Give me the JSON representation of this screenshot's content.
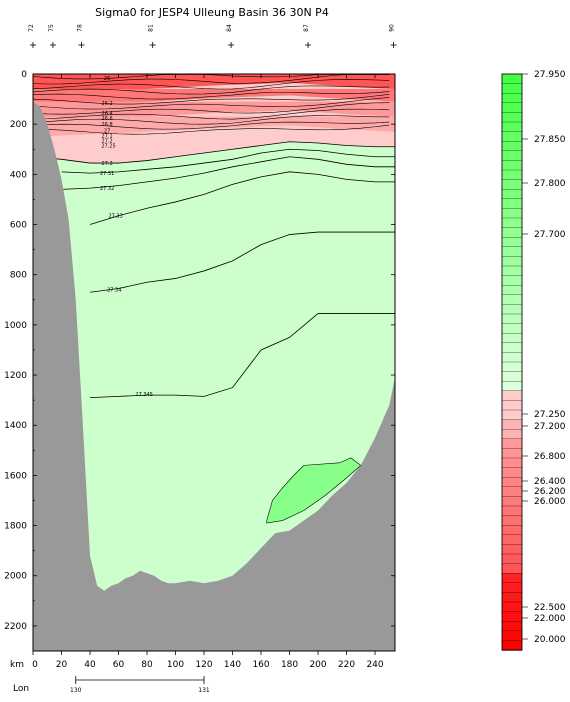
{
  "chart_data": {
    "type": "contour",
    "title": "Sigma0 for JESP4 Ulleung Basin 36 30N P4",
    "x_unit_label": "km",
    "x_ticks": [
      0,
      20,
      40,
      60,
      80,
      100,
      120,
      140,
      160,
      180,
      200,
      220,
      240
    ],
    "xlim": [
      0,
      254
    ],
    "y_ticks": [
      0,
      200,
      400,
      600,
      800,
      1000,
      1200,
      1400,
      1600,
      1800,
      2000,
      2200
    ],
    "ylim": [
      0,
      2300
    ],
    "station_labels": [
      "72",
      "75",
      "78",
      "81",
      "84",
      "87",
      "90"
    ],
    "station_x_km": [
      0,
      14,
      34,
      84,
      139,
      193,
      253
    ],
    "lon_label": "Lon",
    "lon_ticks": [
      {
        "label": "130",
        "km": 30
      },
      {
        "label": "131",
        "km": 120
      }
    ],
    "colorbar_labels": [
      "27.950",
      "27.850",
      "27.800",
      "27.700",
      "27.250",
      "27.200",
      "26.800",
      "26.400",
      "26.200",
      "26.000",
      "22.500",
      "22.000",
      "20.000"
    ],
    "contour_labels": [
      {
        "text": "26",
        "x_km": 52,
        "depth": 15
      },
      {
        "text": "26.2",
        "x_km": 52,
        "depth": 115
      },
      {
        "text": "26.4",
        "x_km": 52,
        "depth": 155
      },
      {
        "text": "26.6",
        "x_km": 52,
        "depth": 175
      },
      {
        "text": "26.8",
        "x_km": 52,
        "depth": 200
      },
      {
        "text": "27",
        "x_km": 52,
        "depth": 225
      },
      {
        "text": "27.1",
        "x_km": 52,
        "depth": 245
      },
      {
        "text": "27.2",
        "x_km": 52,
        "depth": 265
      },
      {
        "text": "27.25",
        "x_km": 53,
        "depth": 285
      },
      {
        "text": "27.3",
        "x_km": 52,
        "depth": 355
      },
      {
        "text": "27.31",
        "x_km": 52,
        "depth": 395
      },
      {
        "text": "27.32",
        "x_km": 52,
        "depth": 455
      },
      {
        "text": "27.33",
        "x_km": 58,
        "depth": 565
      },
      {
        "text": "27.34",
        "x_km": 57,
        "depth": 860
      },
      {
        "text": "27.345",
        "x_km": 78,
        "depth": 1275
      }
    ],
    "contours_depth_by_km": {
      "x_km": [
        0,
        20,
        40,
        60,
        80,
        100,
        120,
        140,
        160,
        180,
        200,
        220,
        240,
        254
      ],
      "27.3": [
        330,
        340,
        355,
        355,
        345,
        330,
        315,
        300,
        285,
        270,
        275,
        285,
        290,
        290
      ],
      "27.31": [
        null,
        390,
        395,
        390,
        380,
        370,
        355,
        340,
        315,
        300,
        305,
        320,
        330,
        330
      ],
      "27.32": [
        null,
        460,
        455,
        445,
        430,
        415,
        395,
        370,
        350,
        330,
        340,
        360,
        370,
        370
      ],
      "27.33": [
        null,
        null,
        600,
        565,
        535,
        510,
        480,
        440,
        410,
        390,
        400,
        420,
        430,
        430
      ],
      "27.34": [
        null,
        null,
        870,
        855,
        830,
        815,
        785,
        745,
        680,
        640,
        630,
        630,
        630,
        630
      ],
      "27.345": [
        null,
        null,
        1290,
        1285,
        1280,
        1280,
        1285,
        1250,
        1100,
        1050,
        955,
        955,
        955,
        955
      ]
    },
    "bottom_depth_by_km": {
      "x_km": [
        0,
        5,
        10,
        15,
        20,
        25,
        30,
        35,
        40,
        45,
        50,
        55,
        60,
        65,
        70,
        75,
        80,
        85,
        90,
        95,
        100,
        110,
        120,
        130,
        140,
        150,
        160,
        170,
        180,
        190,
        200,
        210,
        220,
        230,
        240,
        250,
        254
      ],
      "depth": [
        110,
        130,
        200,
        300,
        420,
        580,
        900,
        1400,
        1920,
        2040,
        2060,
        2040,
        2030,
        2010,
        2000,
        1980,
        1990,
        2000,
        2020,
        2030,
        2030,
        2020,
        2030,
        2020,
        2000,
        1950,
        1890,
        1830,
        1820,
        1780,
        1740,
        1680,
        1630,
        1560,
        1450,
        1320,
        1210
      ]
    }
  }
}
